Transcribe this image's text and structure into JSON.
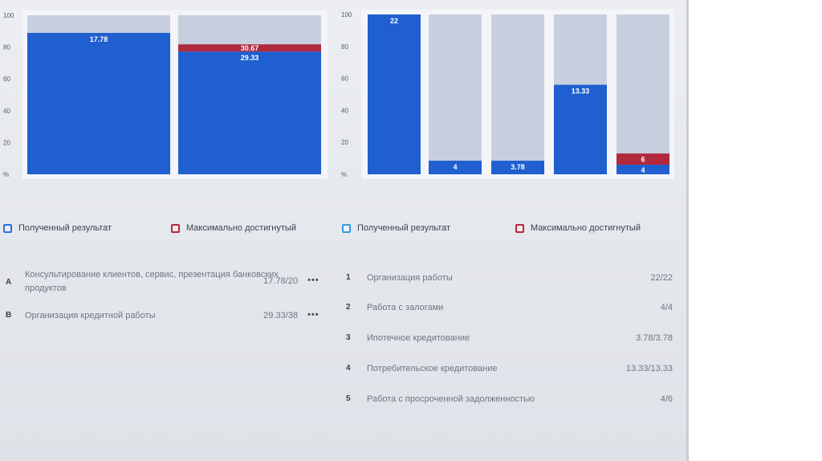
{
  "colors": {
    "result": "#1f5fd0",
    "max": "#b1293c",
    "track": "#c7cfdf",
    "plot_bg": "#f4f5f8"
  },
  "chart_data": [
    {
      "type": "bar",
      "stacked": true,
      "categories": [
        "A",
        "B"
      ],
      "y_ticks": [
        "100",
        "80",
        "60",
        "40",
        "20",
        "%"
      ],
      "ylim": [
        0,
        100
      ],
      "grid": false,
      "series": [
        {
          "name": "Полученный результат",
          "values": [
            88.9,
            77.2
          ],
          "labels": [
            "17.78",
            "29.33"
          ]
        },
        {
          "name": "Максимально достигнутый",
          "values": [
            0,
            4.5
          ],
          "labels": [
            "",
            "30.67"
          ]
        }
      ],
      "legend": {
        "position": "bottom",
        "result_label": "Полученный результат",
        "max_label": "Максимально достигнутый"
      },
      "rows": [
        {
          "key": "A",
          "label_line1": "Консультирование клиентов, сервис, презентация банковских",
          "label_line2": "продуктов",
          "value": "17.78/20",
          "more": "•••"
        },
        {
          "key": "B",
          "label_line1": "Организация кредитной работы",
          "label_line2": "",
          "value": "29.33/38",
          "more": "•••"
        }
      ]
    },
    {
      "type": "bar",
      "stacked": true,
      "categories": [
        "1",
        "2",
        "3",
        "4",
        "5"
      ],
      "y_ticks": [
        "100",
        "80",
        "60",
        "40",
        "20",
        "%"
      ],
      "ylim": [
        0,
        100
      ],
      "grid": false,
      "series": [
        {
          "name": "Полученный результат",
          "values": [
            100,
            8.5,
            8.5,
            56,
            6
          ],
          "labels": [
            "22",
            "4",
            "3.78",
            "13.33",
            "4"
          ]
        },
        {
          "name": "Максимально достигнутый",
          "values": [
            0,
            0,
            0,
            0,
            7
          ],
          "labels": [
            "",
            "",
            "",
            "",
            "6"
          ]
        }
      ],
      "legend": {
        "position": "bottom",
        "result_label": "Полученный результат",
        "max_label": "Максимально достигнутый"
      },
      "rows": [
        {
          "key": "1",
          "label": "Организация работы",
          "value": "22/22"
        },
        {
          "key": "2",
          "label": "Работа с залогами",
          "value": "4/4"
        },
        {
          "key": "3",
          "label": "Ипотечное кредитование",
          "value": "3.78/3.78"
        },
        {
          "key": "4",
          "label": "Потребительское кредитование",
          "value": "13.33/13.33"
        },
        {
          "key": "5",
          "label": "Работа с просроченной задолженностью",
          "value": "4/6"
        }
      ]
    }
  ]
}
